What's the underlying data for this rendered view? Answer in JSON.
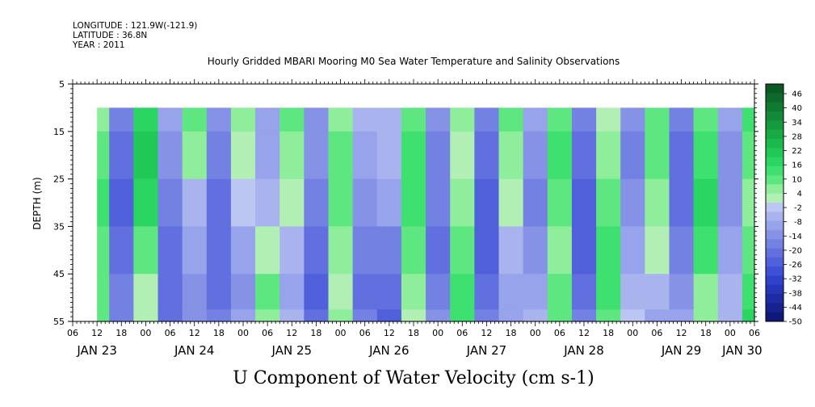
{
  "header": {
    "longitude": "LONGITUDE : 121.9W(-121.9)",
    "latitude": "LATITUDE : 36.8N",
    "year": "YEAR : 2011"
  },
  "chart_data": {
    "type": "heatmap",
    "title": "Hourly Gridded MBARI Mooring M0 Sea Water Temperature and Salinity Observations",
    "xlabel": "U Component of Water Velocity (cm s-1)",
    "ylabel": "DEPTH (m)",
    "y_axis": {
      "ticks": [
        5,
        15,
        25,
        35,
        45,
        55
      ],
      "range": [
        5,
        55
      ],
      "inverted": true
    },
    "data_depth_range": [
      10,
      55
    ],
    "x_axis": {
      "unit": "hours",
      "range_hours": [
        0,
        168
      ],
      "data_start_hour": 6,
      "hour_ticks": [
        {
          "h": 0,
          "label": "06"
        },
        {
          "h": 6,
          "label": "12"
        },
        {
          "h": 12,
          "label": "18"
        },
        {
          "h": 18,
          "label": "00"
        },
        {
          "h": 24,
          "label": "06"
        },
        {
          "h": 30,
          "label": "12"
        },
        {
          "h": 36,
          "label": "18"
        },
        {
          "h": 42,
          "label": "00"
        },
        {
          "h": 48,
          "label": "06"
        },
        {
          "h": 54,
          "label": "12"
        },
        {
          "h": 60,
          "label": "18"
        },
        {
          "h": 66,
          "label": "00"
        },
        {
          "h": 72,
          "label": "06"
        },
        {
          "h": 78,
          "label": "12"
        },
        {
          "h": 84,
          "label": "18"
        },
        {
          "h": 90,
          "label": "00"
        },
        {
          "h": 96,
          "label": "06"
        },
        {
          "h": 102,
          "label": "12"
        },
        {
          "h": 108,
          "label": "18"
        },
        {
          "h": 114,
          "label": "00"
        },
        {
          "h": 120,
          "label": "06"
        },
        {
          "h": 126,
          "label": "12"
        },
        {
          "h": 132,
          "label": "18"
        },
        {
          "h": 138,
          "label": "00"
        },
        {
          "h": 144,
          "label": "06"
        },
        {
          "h": 150,
          "label": "12"
        },
        {
          "h": 156,
          "label": "18"
        },
        {
          "h": 162,
          "label": "00"
        },
        {
          "h": 168,
          "label": "06"
        }
      ],
      "day_labels": [
        {
          "h": 6,
          "label": "JAN 23"
        },
        {
          "h": 30,
          "label": "JAN 24"
        },
        {
          "h": 54,
          "label": "JAN 25"
        },
        {
          "h": 78,
          "label": "JAN 26"
        },
        {
          "h": 102,
          "label": "JAN 27"
        },
        {
          "h": 126,
          "label": "JAN 28"
        },
        {
          "h": 150,
          "label": "JAN 29"
        },
        {
          "h": 165,
          "label": "JAN 30"
        }
      ]
    },
    "colorbar": {
      "labels": [
        "46",
        "40",
        "34",
        "28",
        "22",
        "16",
        "10",
        "4",
        "-2",
        "-8",
        "-14",
        "-20",
        "-26",
        "-32",
        "-38",
        "-44",
        "-50"
      ],
      "range": [
        -50,
        52
      ],
      "colors_top_to_bottom": [
        "#0b5a24",
        "#0e6a2a",
        "#107a30",
        "#138a37",
        "#169a3e",
        "#19aa45",
        "#1cba4c",
        "#20c955",
        "#2ad661",
        "#3ee06f",
        "#5ee781",
        "#8eee9c",
        "#b2efb4",
        "#bcc6f2",
        "#a9b4ee",
        "#97a3ea",
        "#8592e6",
        "#7381e2",
        "#6170de",
        "#4f60da",
        "#3d50d6",
        "#2e42cc",
        "#2536b8",
        "#1d2ca3",
        "#16228e",
        "#0f1879"
      ]
    },
    "series": [
      {
        "times": [
          6,
          12,
          18,
          24,
          30,
          36,
          42,
          48,
          54,
          60,
          66,
          72,
          78,
          84,
          90,
          96,
          102,
          108,
          114,
          120,
          126,
          132,
          138,
          144,
          150,
          156,
          162,
          168
        ],
        "depths": [
          10,
          20,
          30,
          40,
          50,
          55
        ],
        "values": [
          [
            8,
            12,
            14,
            12,
            10,
            9
          ],
          [
            -18,
            -22,
            -24,
            -20,
            -18,
            -16
          ],
          [
            18,
            22,
            20,
            12,
            4,
            2
          ],
          [
            -10,
            -14,
            -18,
            -20,
            -22,
            -20
          ],
          [
            12,
            6,
            -4,
            -10,
            -14,
            -12
          ],
          [
            -14,
            -18,
            -20,
            -22,
            -20,
            -18
          ],
          [
            6,
            4,
            -2,
            -8,
            -12,
            -10
          ],
          [
            -8,
            -10,
            -6,
            4,
            10,
            8
          ],
          [
            10,
            6,
            2,
            -4,
            -8,
            -6
          ],
          [
            -12,
            -14,
            -18,
            -22,
            -24,
            -20
          ],
          [
            8,
            10,
            12,
            8,
            4,
            6
          ],
          [
            -6,
            -8,
            -12,
            -18,
            -20,
            -18
          ],
          [
            -4,
            -6,
            -10,
            -16,
            -22,
            -24
          ],
          [
            10,
            14,
            16,
            10,
            6,
            4
          ],
          [
            -12,
            -16,
            -18,
            -20,
            -18,
            -14
          ],
          [
            6,
            4,
            8,
            12,
            16,
            14
          ],
          [
            -16,
            -20,
            -24,
            -26,
            -22,
            -18
          ],
          [
            10,
            8,
            4,
            -4,
            -10,
            -8
          ],
          [
            -10,
            -14,
            -18,
            -14,
            -8,
            -4
          ],
          [
            12,
            14,
            10,
            6,
            10,
            12
          ],
          [
            -18,
            -22,
            -24,
            -26,
            -20,
            -16
          ],
          [
            4,
            8,
            12,
            16,
            14,
            10
          ],
          [
            -14,
            -16,
            -12,
            -8,
            -4,
            -2
          ],
          [
            10,
            12,
            8,
            2,
            -6,
            -8
          ],
          [
            -16,
            -20,
            -22,
            -18,
            -14,
            -10
          ],
          [
            12,
            16,
            18,
            14,
            8,
            6
          ],
          [
            -8,
            -12,
            -14,
            -10,
            -6,
            -4
          ],
          [
            14,
            10,
            8,
            12,
            16,
            18
          ]
        ]
      }
    ]
  }
}
